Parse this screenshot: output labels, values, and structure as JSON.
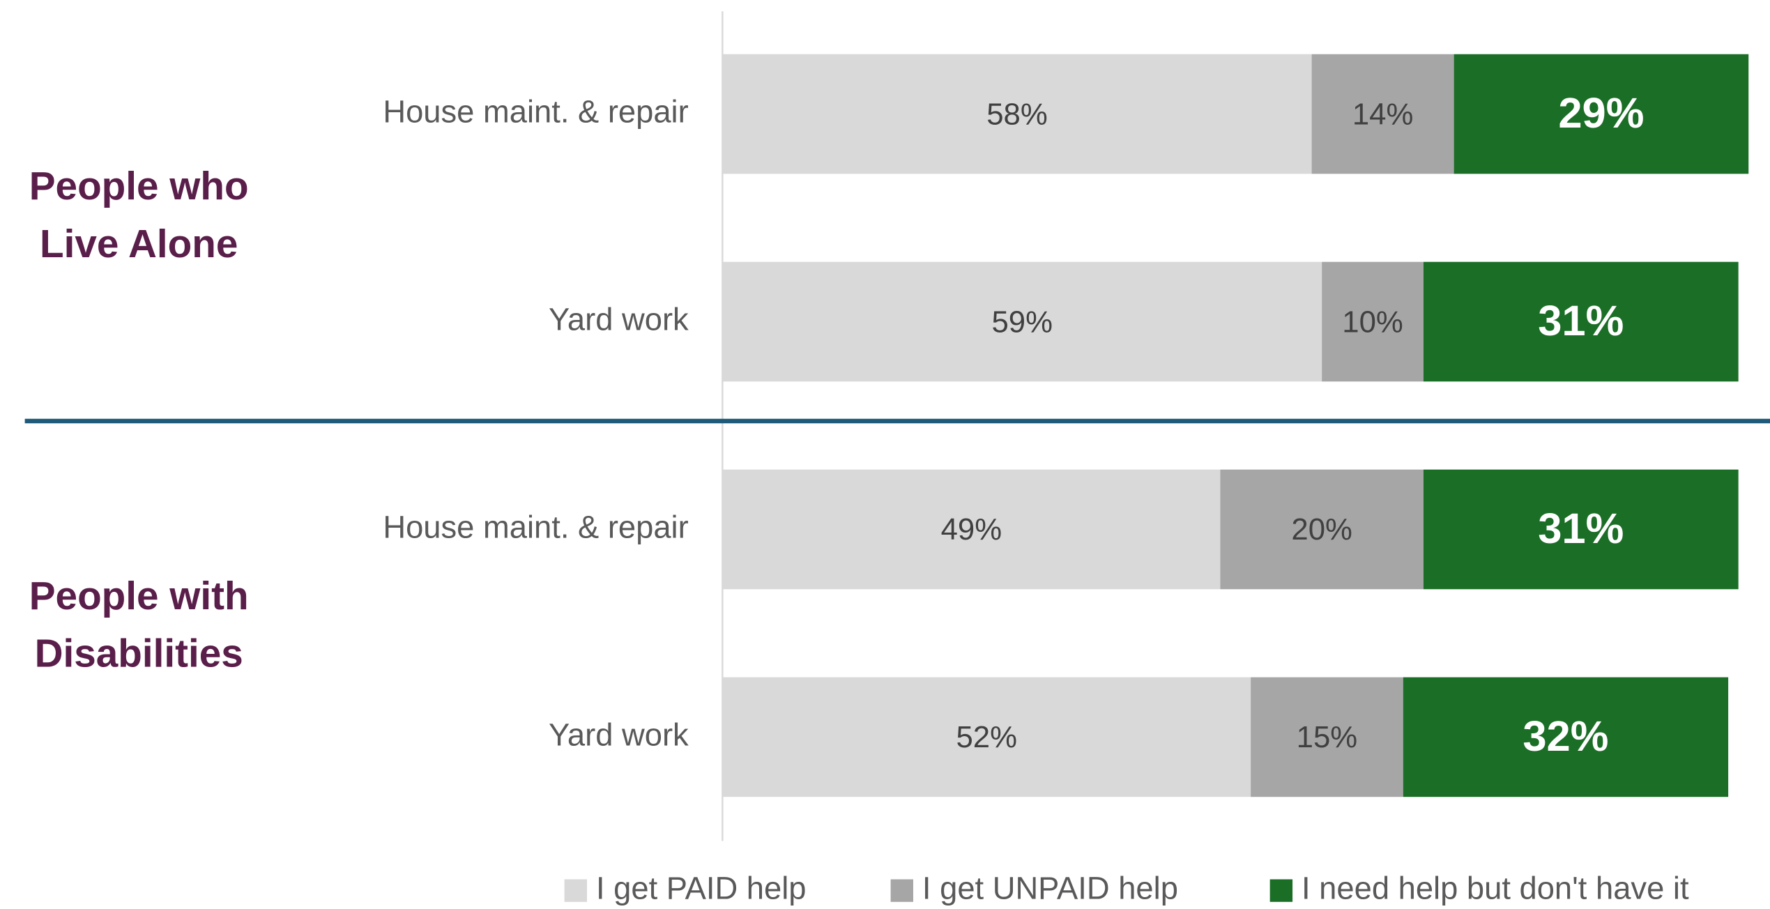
{
  "chart_data": {
    "type": "stacked-barh",
    "groups": [
      {
        "lines": [
          "People who",
          "Live Alone"
        ]
      },
      {
        "lines": [
          "People with",
          "Disabilities"
        ]
      }
    ],
    "categories": [
      "House maint. & repair",
      "Yard work",
      "House maint. & repair",
      "Yard work"
    ],
    "series": [
      {
        "name": "I get PAID help",
        "color": "#d9d9d9",
        "values": [
          58,
          59,
          49,
          52
        ],
        "value_labels": [
          "58%",
          "59%",
          "49%",
          "52%"
        ]
      },
      {
        "name": "I get UNPAID help",
        "color": "#a6a6a6",
        "values": [
          14,
          10,
          20,
          15
        ],
        "value_labels": [
          "14%",
          "10%",
          "20%",
          "15%"
        ]
      },
      {
        "name": "I need help but don't have it",
        "color": "#1b6e26",
        "values": [
          29,
          31,
          31,
          32
        ],
        "value_labels": [
          "29%",
          "31%",
          "31%",
          "32%"
        ]
      }
    ],
    "xlim": [
      0,
      100
    ]
  }
}
